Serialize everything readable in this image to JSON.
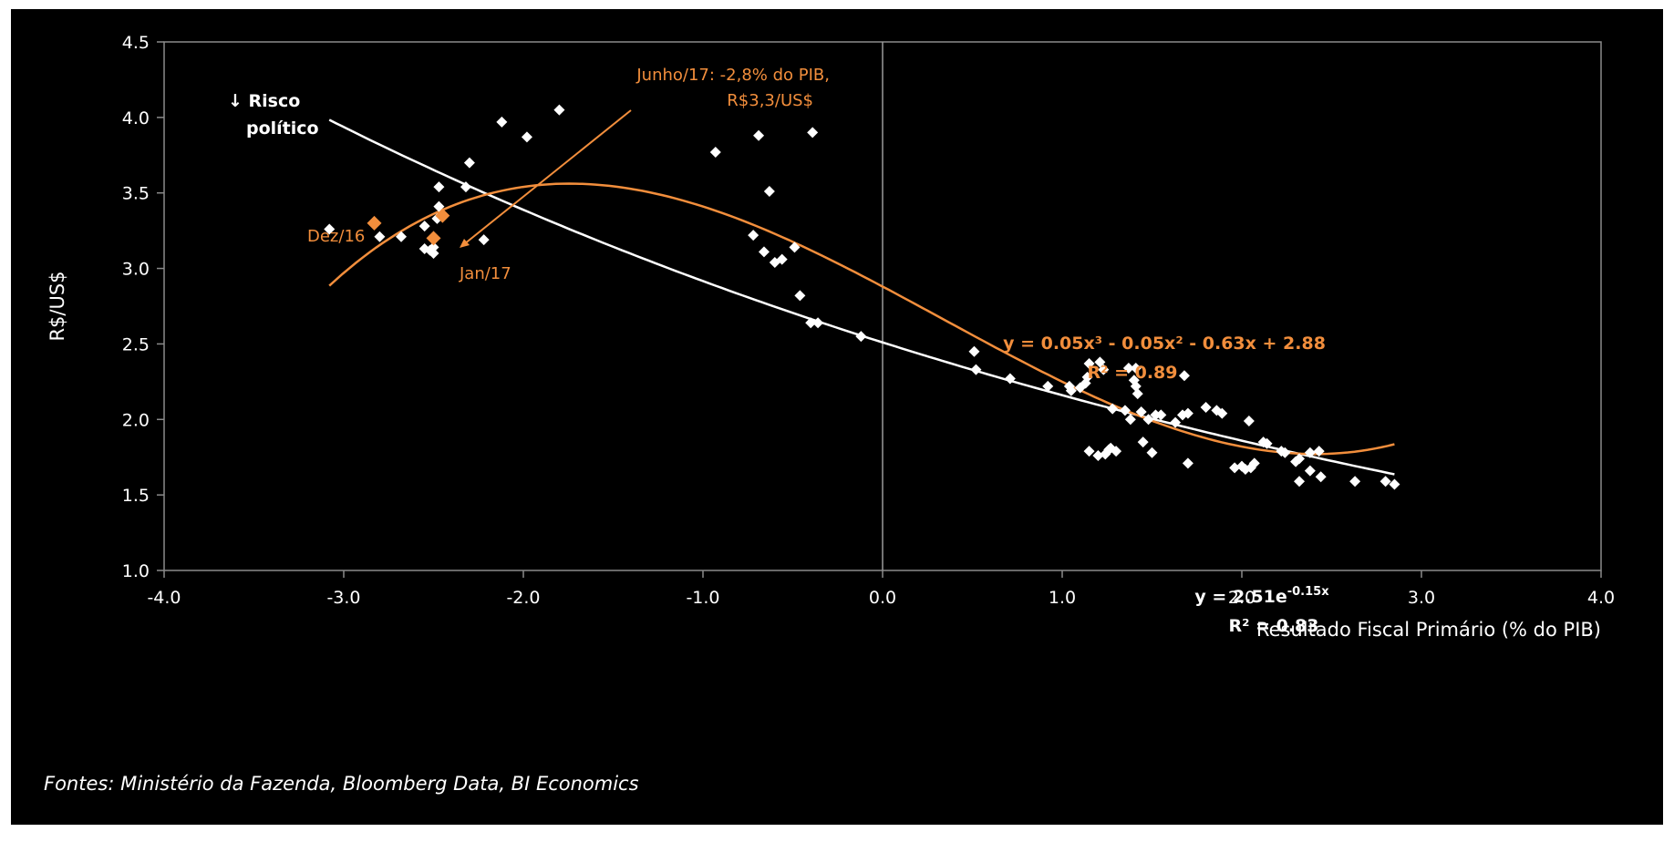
{
  "chart_data": {
    "type": "scatter",
    "title": "",
    "xlabel": "Resultado Fiscal Primário (% do PIB)",
    "ylabel": "R$/US$",
    "xlim": [
      -4.0,
      4.0
    ],
    "ylim": [
      1.0,
      4.5
    ],
    "x_ticks": [
      -4.0,
      -3.0,
      -2.0,
      -1.0,
      0.0,
      1.0,
      2.0,
      3.0,
      4.0
    ],
    "x_tick_labels": [
      "-4.0",
      "-3.0",
      "-2.0",
      "-1.0",
      "0.0",
      "1.0",
      "2.0",
      "3.0",
      "4.0"
    ],
    "y_ticks": [
      1.0,
      1.5,
      2.0,
      2.5,
      3.0,
      3.5,
      4.0,
      4.5
    ],
    "y_tick_labels": [
      "1.0",
      "1.5",
      "2.0",
      "2.5",
      "3.0",
      "3.5",
      "4.0",
      "4.5"
    ],
    "grid": false,
    "colors": {
      "background": "#000000",
      "points": "#ffffff",
      "highlight": "#f28e3c",
      "exp_fit": "#ffffff",
      "poly_fit": "#f28e3c"
    },
    "series": [
      {
        "type": "scatter",
        "points": [
          [
            -3.08,
            3.26
          ],
          [
            -2.8,
            3.21
          ],
          [
            -2.68,
            3.21
          ],
          [
            -2.55,
            3.28
          ],
          [
            -2.55,
            3.13
          ],
          [
            -2.52,
            3.12
          ],
          [
            -2.5,
            3.1
          ],
          [
            -2.5,
            3.14
          ],
          [
            -2.48,
            3.33
          ],
          [
            -2.47,
            3.41
          ],
          [
            -2.47,
            3.54
          ],
          [
            -2.32,
            3.54
          ],
          [
            -2.3,
            3.7
          ],
          [
            -2.22,
            3.19
          ],
          [
            -2.12,
            3.97
          ],
          [
            -1.98,
            3.87
          ],
          [
            -1.8,
            4.05
          ],
          [
            -0.93,
            3.77
          ],
          [
            -0.72,
            3.22
          ],
          [
            -0.69,
            3.88
          ],
          [
            -0.66,
            3.11
          ],
          [
            -0.63,
            3.51
          ],
          [
            -0.6,
            3.04
          ],
          [
            -0.56,
            3.06
          ],
          [
            -0.49,
            3.14
          ],
          [
            -0.46,
            2.82
          ],
          [
            -0.4,
            2.64
          ],
          [
            -0.39,
            3.9
          ],
          [
            -0.36,
            2.64
          ],
          [
            -0.12,
            2.55
          ],
          [
            0.51,
            2.45
          ],
          [
            0.52,
            2.33
          ],
          [
            0.71,
            2.27
          ],
          [
            0.92,
            2.22
          ],
          [
            1.04,
            2.22
          ],
          [
            1.05,
            2.19
          ],
          [
            1.1,
            2.21
          ],
          [
            1.13,
            2.24
          ],
          [
            1.14,
            2.28
          ],
          [
            1.15,
            2.37
          ],
          [
            1.15,
            1.79
          ],
          [
            1.2,
            1.76
          ],
          [
            1.21,
            2.38
          ],
          [
            1.23,
            2.33
          ],
          [
            1.24,
            1.77
          ],
          [
            1.26,
            1.8
          ],
          [
            1.27,
            1.81
          ],
          [
            1.28,
            2.07
          ],
          [
            1.3,
            1.79
          ],
          [
            1.35,
            2.06
          ],
          [
            1.37,
            2.34
          ],
          [
            1.38,
            2.0
          ],
          [
            1.4,
            2.26
          ],
          [
            1.41,
            2.22
          ],
          [
            1.41,
            2.34
          ],
          [
            1.42,
            2.17
          ],
          [
            1.44,
            2.05
          ],
          [
            1.45,
            1.85
          ],
          [
            1.48,
            2.0
          ],
          [
            1.5,
            1.78
          ],
          [
            1.52,
            2.03
          ],
          [
            1.55,
            2.03
          ],
          [
            1.63,
            1.98
          ],
          [
            1.67,
            2.03
          ],
          [
            1.68,
            2.29
          ],
          [
            1.7,
            2.04
          ],
          [
            1.7,
            1.71
          ],
          [
            1.8,
            2.08
          ],
          [
            1.86,
            2.06
          ],
          [
            1.89,
            2.04
          ],
          [
            1.96,
            1.68
          ],
          [
            2.0,
            1.69
          ],
          [
            2.02,
            1.67
          ],
          [
            2.04,
            1.99
          ],
          [
            2.05,
            1.68
          ],
          [
            2.07,
            1.71
          ],
          [
            2.12,
            1.85
          ],
          [
            2.14,
            1.84
          ],
          [
            2.22,
            1.79
          ],
          [
            2.24,
            1.78
          ],
          [
            2.3,
            1.72
          ],
          [
            2.32,
            1.74
          ],
          [
            2.32,
            1.59
          ],
          [
            2.38,
            1.78
          ],
          [
            2.38,
            1.66
          ],
          [
            2.43,
            1.79
          ],
          [
            2.44,
            1.62
          ],
          [
            2.63,
            1.59
          ],
          [
            2.8,
            1.59
          ],
          [
            2.85,
            1.57
          ]
        ]
      },
      {
        "type": "scatter",
        "points": [
          [
            -2.83,
            3.3
          ],
          [
            -2.45,
            3.35
          ],
          [
            -2.5,
            3.2
          ]
        ]
      }
    ],
    "trendlines": [
      {
        "type": "exponential",
        "a": 2.51,
        "b": -0.15,
        "x_range": [
          -3.08,
          2.85
        ]
      },
      {
        "type": "polynomial",
        "coefficients": [
          0.05,
          -0.05,
          -0.63,
          2.88
        ],
        "x_range": [
          -3.08,
          2.85
        ]
      }
    ],
    "annotations": {
      "risco_politico": [
        "↓ Risco",
        "político"
      ],
      "junho17": [
        "Junho/17: -2,8% do PIB,",
        "R$3,3/US$"
      ],
      "dez16": "Dez/16",
      "jan17": "Jan/17",
      "poly_equation": "y = 0.05x³ - 0.05x² - 0.63x + 2.88",
      "poly_r2": "R² = 0.89",
      "exp_equation": "y = 2.51e-0.15x",
      "exp_r2": "R² = 0.83"
    },
    "source": "Fontes: Ministério da Fazenda, Bloomberg Data, BI Economics"
  }
}
